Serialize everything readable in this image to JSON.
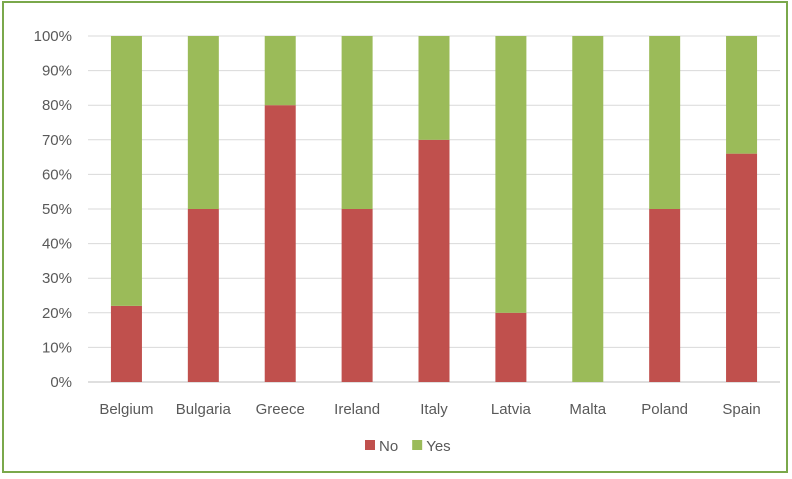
{
  "chart_data": {
    "type": "bar",
    "stacked": true,
    "percent_stacked": true,
    "categories": [
      "Belgium",
      "Bulgaria",
      "Greece",
      "Ireland",
      "Italy",
      "Latvia",
      "Malta",
      "Poland",
      "Spain"
    ],
    "series": [
      {
        "name": "No",
        "color": "#c0504d",
        "values": [
          22,
          50,
          80,
          50,
          70,
          20,
          0,
          50,
          66
        ]
      },
      {
        "name": "Yes",
        "color": "#9bbb59",
        "values": [
          78,
          50,
          20,
          50,
          30,
          80,
          100,
          50,
          34
        ]
      }
    ],
    "y_ticks": [
      "0%",
      "10%",
      "20%",
      "30%",
      "40%",
      "50%",
      "60%",
      "70%",
      "80%",
      "90%",
      "100%"
    ],
    "ylim": [
      0,
      100
    ],
    "grid": true,
    "legend_position": "bottom",
    "title": "",
    "xlabel": "",
    "ylabel": ""
  },
  "colors": {
    "border": "#7aa84b",
    "grid": "#d9d9d9",
    "axis": "#bfbfbf",
    "text": "#595959"
  }
}
